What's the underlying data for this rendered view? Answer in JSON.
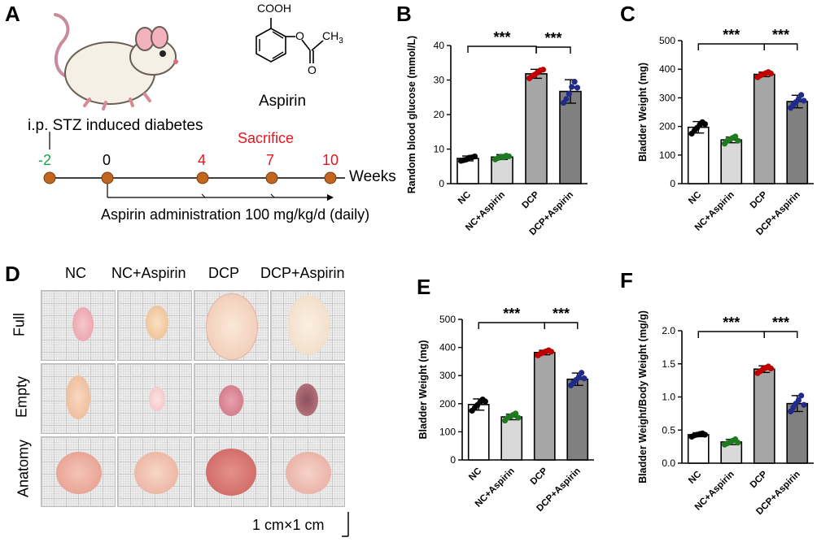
{
  "panels": {
    "A": {
      "letter": "A",
      "drug_label": "Aspirin",
      "cooh": "COOH",
      "ch3": "CH",
      "ch3_sub": "3",
      "o1": "O",
      "o2": "O",
      "stz_label": "i.p. STZ  induced diabetes",
      "sacrifice_label": "Sacrifice",
      "timepoints": [
        "-2",
        "0",
        "4",
        "7",
        "10"
      ],
      "weeks_label": "Weeks",
      "administration_label": "Aspirin administration 100 mg/kg/d (daily)",
      "colors": {
        "green": "#1aa34a",
        "red": "#e8141c",
        "dot": "#c0661e"
      }
    },
    "D": {
      "letter": "D",
      "columns": [
        "NC",
        "NC+Aspirin",
        "DCP",
        "DCP+Aspirin"
      ],
      "rows": [
        "Full",
        "Empty",
        "Anatomy"
      ],
      "scale_label": "1 cm×1 cm"
    }
  },
  "chart_data": [
    {
      "id": "B",
      "letter": "B",
      "type": "bar",
      "ylabel": "Random blood glucose (mmol/L)",
      "categories": [
        "NC",
        "NC+Aspirin",
        "DCP",
        "DCP+Aspirin"
      ],
      "values": [
        7.3,
        7.7,
        31.8,
        26.7
      ],
      "errors": [
        0.7,
        0.7,
        1.3,
        3.4
      ],
      "points": [
        [
          6.6,
          6.8,
          7.0,
          7.5,
          7.6,
          7.9
        ],
        [
          7.0,
          7.4,
          7.8,
          7.6,
          8.1,
          7.9
        ],
        [
          30.5,
          31.2,
          31.6,
          32.2,
          32.8,
          33.0
        ],
        [
          23.4,
          24.5,
          26.0,
          28.0,
          29.5,
          27.8
        ]
      ],
      "ylim": [
        0,
        40
      ],
      "yticks": [
        0,
        10,
        20,
        30,
        40
      ],
      "significance": [
        {
          "from": 0,
          "to": 2,
          "label": "***"
        },
        {
          "from": 2,
          "to": 3,
          "label": "***"
        }
      ]
    },
    {
      "id": "C",
      "letter": "C",
      "type": "bar",
      "ylabel": "Bladder Weight (mg)",
      "categories": [
        "NC",
        "NC+Aspirin",
        "DCP",
        "DCP+Aspirin"
      ],
      "values": [
        197,
        153,
        382,
        287
      ],
      "errors": [
        20,
        10,
        8,
        22
      ],
      "points": [
        [
          175,
          185,
          195,
          205,
          215,
          208
        ],
        [
          140,
          150,
          155,
          160,
          165,
          150
        ],
        [
          372,
          378,
          382,
          386,
          390,
          385
        ],
        [
          265,
          275,
          285,
          295,
          310,
          290
        ]
      ],
      "ylim": [
        0,
        500
      ],
      "yticks": [
        0,
        100,
        200,
        300,
        400,
        500
      ],
      "significance": [
        {
          "from": 0,
          "to": 2,
          "label": "***"
        },
        {
          "from": 2,
          "to": 3,
          "label": "***"
        }
      ]
    },
    {
      "id": "E",
      "letter": "E",
      "type": "bar",
      "ylabel": "Bladder Weight (mg)",
      "categories": [
        "NC",
        "NC+Aspirin",
        "DCP",
        "DCP+Aspirin"
      ],
      "values": [
        197,
        153,
        382,
        287
      ],
      "errors": [
        20,
        10,
        8,
        22
      ],
      "points": [
        [
          175,
          185,
          195,
          205,
          215,
          208
        ],
        [
          140,
          150,
          155,
          160,
          165,
          150
        ],
        [
          372,
          378,
          382,
          386,
          390,
          385
        ],
        [
          265,
          275,
          285,
          295,
          310,
          290
        ]
      ],
      "ylim": [
        0,
        500
      ],
      "yticks": [
        0,
        100,
        200,
        300,
        400,
        500
      ],
      "significance": [
        {
          "from": 0,
          "to": 2,
          "label": "***"
        },
        {
          "from": 2,
          "to": 3,
          "label": "***"
        }
      ]
    },
    {
      "id": "F",
      "letter": "F",
      "type": "bar",
      "ylabel": "Bladder Weight/Body Weight (mg/g)",
      "categories": [
        "NC",
        "NC+Aspirin",
        "DCP",
        "DCP+Aspirin"
      ],
      "values": [
        0.43,
        0.32,
        1.42,
        0.9
      ],
      "errors": [
        0.03,
        0.04,
        0.05,
        0.12
      ],
      "points": [
        [
          0.4,
          0.42,
          0.43,
          0.44,
          0.45,
          0.43
        ],
        [
          0.28,
          0.3,
          0.32,
          0.34,
          0.36,
          0.31
        ],
        [
          1.36,
          1.39,
          1.42,
          1.44,
          1.46,
          1.43
        ],
        [
          0.78,
          0.84,
          0.9,
          0.95,
          1.02,
          0.88
        ]
      ],
      "ylim": [
        0,
        2.0
      ],
      "yticks": [
        0,
        0.5,
        1.0,
        1.5,
        2.0
      ],
      "significance": [
        {
          "from": 0,
          "to": 2,
          "label": "***"
        },
        {
          "from": 2,
          "to": 3,
          "label": "***"
        }
      ]
    }
  ],
  "chart_colors": {
    "bar_fills": [
      "#ffffff",
      "#d9d9d9",
      "#a6a6a6",
      "#808080"
    ],
    "dot_colors": [
      "#000000",
      "#1f7a1f",
      "#c00000",
      "#1f2a8a"
    ]
  }
}
